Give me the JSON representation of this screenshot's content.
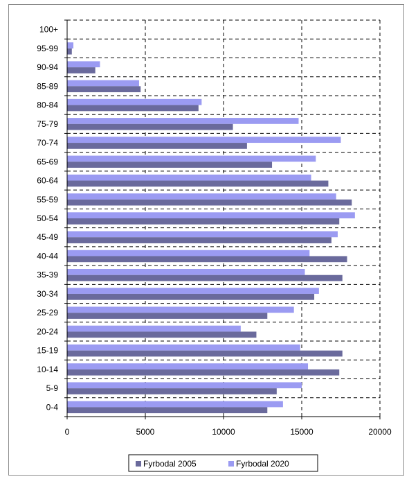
{
  "chart_data": {
    "type": "bar",
    "orientation": "horizontal",
    "categories": [
      "0-4",
      "5-9",
      "10-14",
      "15-19",
      "20-24",
      "25-29",
      "30-34",
      "35-39",
      "40-44",
      "45-49",
      "50-54",
      "55-59",
      "60-64",
      "65-69",
      "70-74",
      "75-79",
      "80-84",
      "85-89",
      "90-94",
      "95-99",
      "100+"
    ],
    "series": [
      {
        "name": "Fyrbodal 2005",
        "color": "#6a6a9c",
        "values": [
          12800,
          13400,
          17400,
          17600,
          12100,
          12800,
          15800,
          17600,
          17900,
          16900,
          17400,
          18200,
          16700,
          13100,
          11500,
          10600,
          8400,
          4700,
          1800,
          300,
          0
        ]
      },
      {
        "name": "Fyrbodal 2020",
        "color": "#9b9bf2",
        "values": [
          13800,
          15000,
          15400,
          14900,
          11100,
          14500,
          16100,
          15200,
          15500,
          17300,
          18400,
          17200,
          15600,
          15900,
          17500,
          14800,
          8600,
          4600,
          2100,
          400,
          0
        ]
      }
    ],
    "xlim": [
      0,
      20000
    ],
    "xticks": [
      "0",
      "5000",
      "10000",
      "15000",
      "20000"
    ],
    "grid": {
      "vertical": true,
      "horizontal": true,
      "style": "dashed"
    },
    "legend": {
      "placement": "bottom",
      "items": [
        "Fyrbodal 2005",
        "Fyrbodal 2020"
      ]
    }
  }
}
